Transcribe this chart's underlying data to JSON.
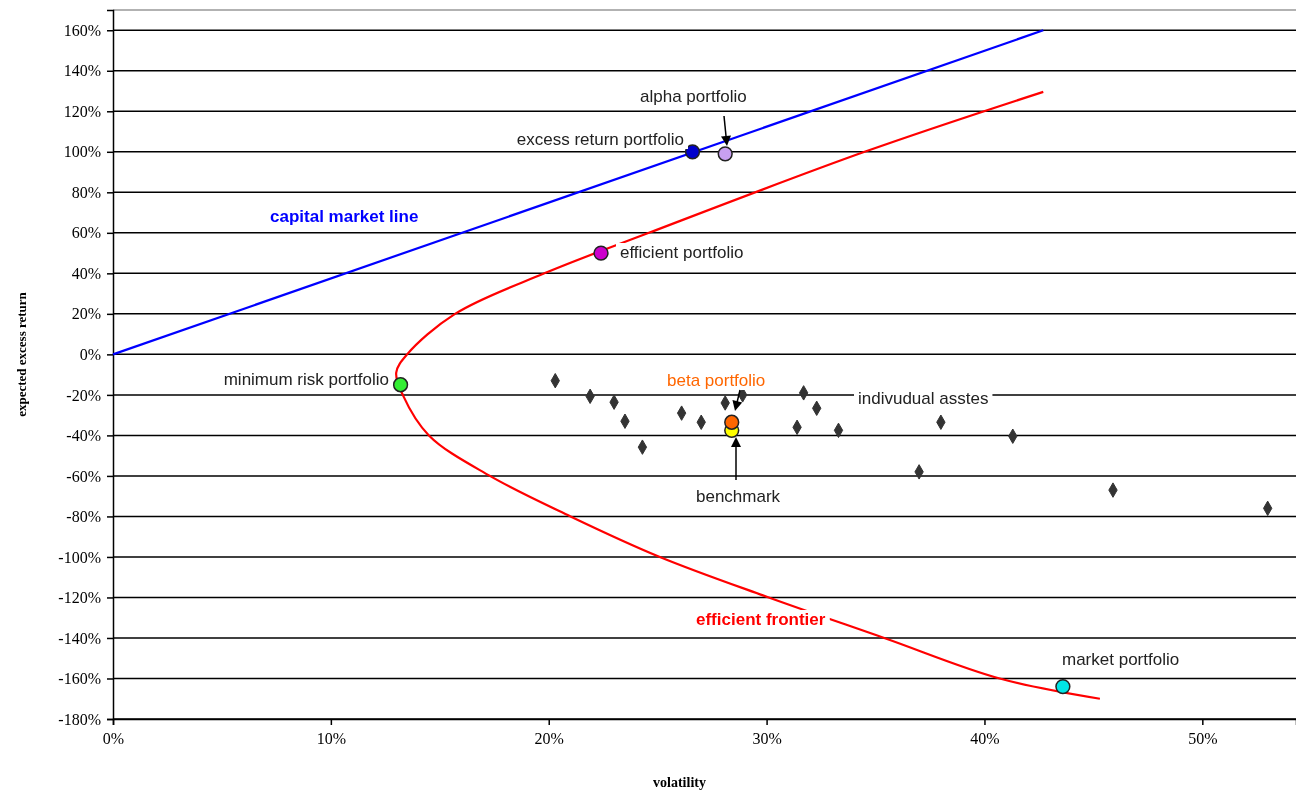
{
  "chart_data": {
    "type": "scatter",
    "xlabel": "volatility",
    "ylabel": "expected excess return",
    "xlim": [
      0,
      54.3
    ],
    "ylim": [
      -180,
      170
    ],
    "xticks": [
      {
        "value": 0,
        "label": "0%"
      },
      {
        "value": 10,
        "label": "10%"
      },
      {
        "value": 20,
        "label": "20%"
      },
      {
        "value": 30,
        "label": "30%"
      },
      {
        "value": 40,
        "label": "40%"
      },
      {
        "value": 50,
        "label": "50%"
      }
    ],
    "yticks": [
      {
        "value": 160,
        "label": "160%"
      },
      {
        "value": 140,
        "label": "140%"
      },
      {
        "value": 120,
        "label": "120%"
      },
      {
        "value": 100,
        "label": "100%"
      },
      {
        "value": 80,
        "label": "80%"
      },
      {
        "value": 60,
        "label": "60%"
      },
      {
        "value": 40,
        "label": "40%"
      },
      {
        "value": 20,
        "label": "20%"
      },
      {
        "value": 0,
        "label": "0%"
      },
      {
        "value": -20,
        "label": "-20%"
      },
      {
        "value": -40,
        "label": "-40%"
      },
      {
        "value": -60,
        "label": "-60%"
      },
      {
        "value": -80,
        "label": "-80%"
      },
      {
        "value": -100,
        "label": "-100%"
      },
      {
        "value": -120,
        "label": "-120%"
      },
      {
        "value": -140,
        "label": "-140%"
      },
      {
        "value": -160,
        "label": "-160%"
      },
      {
        "value": -180,
        "label": "-180%"
      }
    ],
    "grid": "y",
    "legend": false,
    "series": [
      {
        "name": "capital market line",
        "type": "line",
        "color": "#0000ff",
        "marker": "none",
        "x": [
          0,
          42.7
        ],
        "values": [
          0,
          160
        ]
      },
      {
        "name": "efficient frontier",
        "type": "line",
        "color": "#ff0000",
        "marker": "none",
        "x": [
          42.7,
          34.5,
          24.6,
          19.8,
          15.7,
          13.5,
          13.0,
          13.3,
          14.5,
          17.3,
          21.0,
          25.1,
          30.1,
          35.4,
          40.7,
          45.3
        ],
        "values": [
          129.6,
          100,
          60,
          40,
          20,
          0,
          -9,
          -20,
          -40,
          -60,
          -80,
          -100,
          -120,
          -140,
          -160,
          -170
        ]
      },
      {
        "name": "indivudual asstes",
        "color": "#333333",
        "marker": "diamond",
        "x": [
          20.3,
          21.9,
          23.0,
          23.5,
          24.3,
          26.1,
          27.0,
          28.1,
          28.9,
          31.7,
          32.3,
          31.4,
          33.3,
          38.0,
          41.3,
          37.0,
          45.9,
          53.0
        ],
        "values": [
          -13,
          -20.7,
          -23.6,
          -33,
          -45.8,
          -29,
          -33.5,
          -24,
          -20,
          -19,
          -26.6,
          -36,
          -37.5,
          -33.5,
          -40.4,
          -58,
          -67,
          -76
        ]
      },
      {
        "name": "excess return portfolio",
        "color": "#0000cc",
        "marker": "circle",
        "x": [
          26.6
        ],
        "values": [
          100
        ]
      },
      {
        "name": "alpha portfolio",
        "color": "#c8a0f0",
        "marker": "circle",
        "x": [
          28.1
        ],
        "values": [
          99
        ]
      },
      {
        "name": "efficient portfolio",
        "color": "#cc00cc",
        "marker": "circle",
        "x": [
          22.4
        ],
        "values": [
          50
        ]
      },
      {
        "name": "minimum risk portfolio",
        "color": "#33ee33",
        "marker": "circle",
        "x": [
          13.2
        ],
        "values": [
          -15
        ]
      },
      {
        "name": "benchmark",
        "color": "#ffff00",
        "marker": "circle",
        "x": [
          28.4
        ],
        "values": [
          -37.5
        ]
      },
      {
        "name": "beta portfolio",
        "color": "#ff6600",
        "marker": "circle",
        "x": [
          28.4
        ],
        "values": [
          -33.5
        ]
      },
      {
        "name": "market portfolio",
        "color": "#00e5e5",
        "marker": "circle",
        "x": [
          43.6
        ],
        "values": [
          -164
        ]
      }
    ]
  }
}
